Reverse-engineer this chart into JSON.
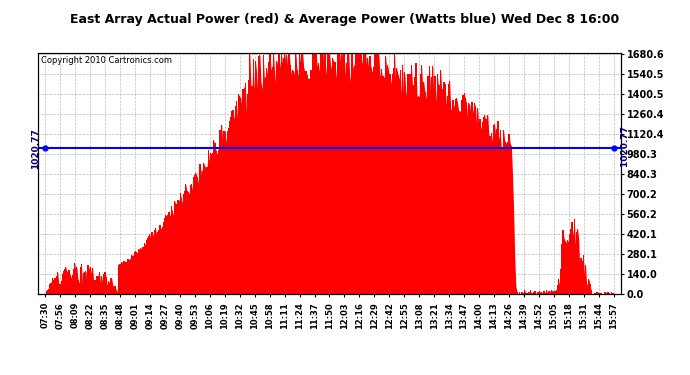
{
  "title": "East Array Actual Power (red) & Average Power (Watts blue) Wed Dec 8 16:00",
  "copyright": "Copyright 2010 Cartronics.com",
  "average_power": 1020.77,
  "y_max": 1680.6,
  "y_min": 0.0,
  "y_ticks": [
    0.0,
    140.0,
    280.1,
    420.1,
    560.2,
    700.2,
    840.3,
    980.3,
    1120.4,
    1260.4,
    1400.5,
    1540.5,
    1680.6
  ],
  "background_color": "#ffffff",
  "plot_bg_color": "#ffffff",
  "grid_color": "#aaaaaa",
  "bar_color": "#ff0000",
  "avg_line_color": "#0000ff",
  "title_color": "#000000",
  "title_fontsize": 9.5,
  "x_labels": [
    "07:30",
    "07:56",
    "08:09",
    "08:22",
    "08:35",
    "08:48",
    "09:01",
    "09:14",
    "09:27",
    "09:40",
    "09:53",
    "10:06",
    "10:19",
    "10:32",
    "10:45",
    "10:58",
    "11:11",
    "11:24",
    "11:37",
    "11:50",
    "12:03",
    "12:16",
    "12:29",
    "12:42",
    "12:55",
    "13:08",
    "13:21",
    "13:34",
    "13:47",
    "14:00",
    "14:13",
    "14:26",
    "14:39",
    "14:52",
    "15:05",
    "15:18",
    "15:31",
    "15:44",
    "15:57"
  ]
}
